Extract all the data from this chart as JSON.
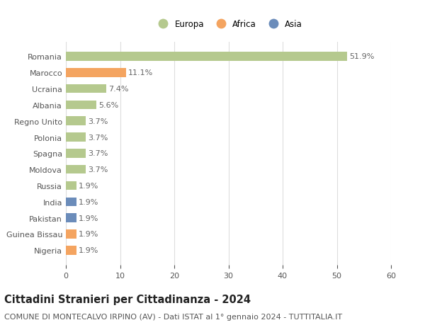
{
  "categories": [
    "Nigeria",
    "Guinea Bissau",
    "Pakistan",
    "India",
    "Russia",
    "Moldova",
    "Spagna",
    "Polonia",
    "Regno Unito",
    "Albania",
    "Ucraina",
    "Marocco",
    "Romania"
  ],
  "values": [
    1.9,
    1.9,
    1.9,
    1.9,
    1.9,
    3.7,
    3.7,
    3.7,
    3.7,
    5.6,
    7.4,
    11.1,
    51.9
  ],
  "colors": [
    "#f4a460",
    "#f4a460",
    "#6b8cba",
    "#6b8cba",
    "#b5c98e",
    "#b5c98e",
    "#b5c98e",
    "#b5c98e",
    "#b5c98e",
    "#b5c98e",
    "#b5c98e",
    "#f4a460",
    "#b5c98e"
  ],
  "legend_labels": [
    "Europa",
    "Africa",
    "Asia"
  ],
  "legend_colors": [
    "#b5c98e",
    "#f4a460",
    "#6b8cba"
  ],
  "title": "Cittadini Stranieri per Cittadinanza - 2024",
  "subtitle": "COMUNE DI MONTECALVO IRPINO (AV) - Dati ISTAT al 1° gennaio 2024 - TUTTITALIA.IT",
  "xlim": [
    0,
    60
  ],
  "xticks": [
    0,
    10,
    20,
    30,
    40,
    50,
    60
  ],
  "background_color": "#ffffff",
  "grid_color": "#dddddd",
  "bar_height": 0.55,
  "label_fontsize": 8,
  "title_fontsize": 10.5,
  "subtitle_fontsize": 8,
  "value_fontsize": 8
}
